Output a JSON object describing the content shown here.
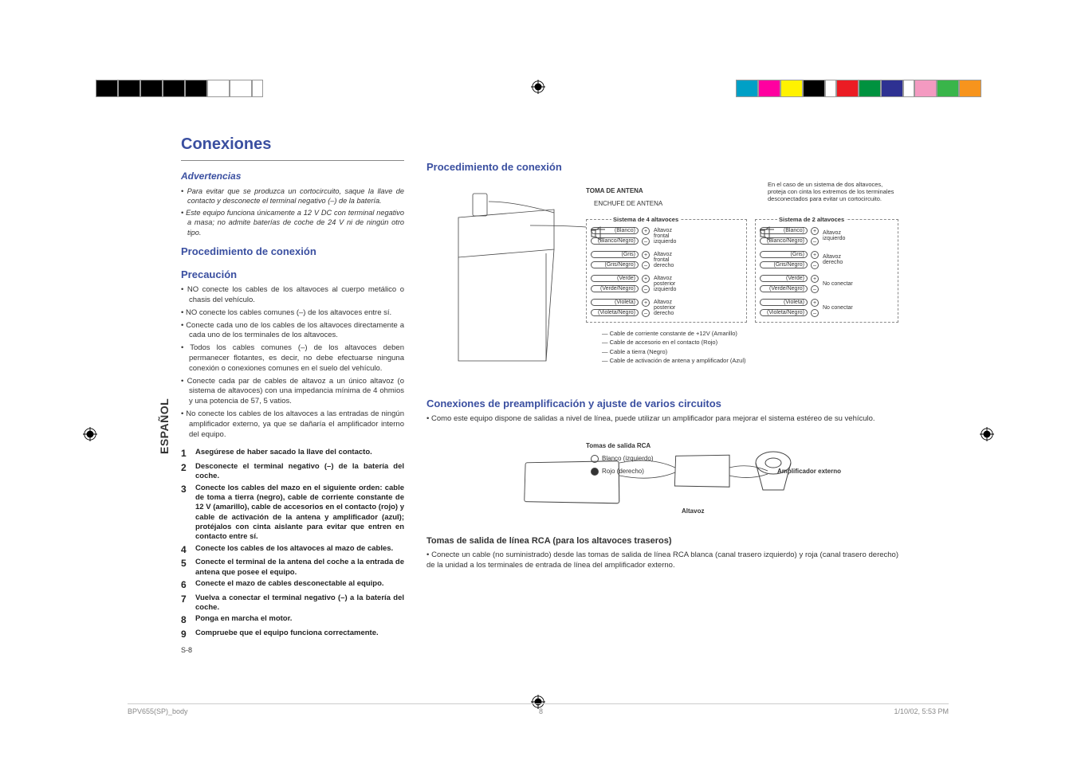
{
  "colorStrips": {
    "leftColors": [
      "#000000",
      "#000000",
      "#000000",
      "#000000",
      "#000000",
      "#ffffff",
      "#ffffff",
      "#ffffff"
    ],
    "rightColors": [
      "#00a0c6",
      "#ff00a0",
      "#fff200",
      "#000000",
      "#ffffff",
      "#eb1c24",
      "#00923f",
      "#2e3192",
      "#f7941d",
      "#39b54a",
      "#f49ac1",
      "#92278f"
    ]
  },
  "sideTab": "ESPAÑOL",
  "sectionTitle": "Conexiones",
  "warnings": {
    "head": "Advertencias",
    "items": [
      "• Para evitar que se produzca un cortocircuito, saque la llave de contacto y desconecte el terminal negativo (–) de la batería.",
      "• Este equipo funciona únicamente a 12 V DC con terminal negativo a masa; no admite baterías de coche de 24 V ni de ningún otro tipo."
    ]
  },
  "procHead": "Procedimiento de conexión",
  "precaution": {
    "head": "Precaución",
    "items": [
      "• NO conecte los cables de los altavoces al cuerpo metálico o chasis del vehículo.",
      "• NO conecte los cables comunes (–) de los altavoces entre sí.",
      "• Conecte cada uno de los cables de los altavoces directamente a cada uno de los terminales de los altavoces.",
      "• Todos los cables comunes (–) de los altavoces deben permanecer flotantes, es decir, no debe efectuarse ninguna conexión o conexiones comunes en el suelo del vehículo.",
      "• Conecte cada par de cables de altavoz a un único altavoz (o sistema de altavoces) con una impedancia mínima de 4 ohmios y una potencia de 57, 5 vatios.",
      "• No conecte los cables de los altavoces a las entradas de ningún amplificador externo, ya que se dañaría el amplificador interno del equipo."
    ]
  },
  "steps": [
    "Asegúrese de haber sacado la llave del contacto.",
    "Desconecte el terminal negativo (–) de la batería del coche.",
    "Conecte los cables del mazo en el siguiente orden: cable de toma a tierra (negro), cable de corriente constante de 12 V (amarillo), cable de accesorios en el contacto (rojo) y cable de activación de la antena y amplificador (azul); protéjalos con cinta aislante para evitar que entren en contacto entre sí.",
    "Conecte los cables de los altavoces al mazo de cables.",
    "Conecte el terminal de la antena del coche a la entrada de antena que posee el equipo.",
    "Conecte el mazo de cables desconectable al equipo.",
    "Vuelva a conectar el terminal negativo (–) a la batería del coche.",
    "Ponga en marcha el motor.",
    "Compruebe que el equipo funciona correctamente."
  ],
  "pageNum": "S-8",
  "rightCol": {
    "procHead": "Procedimiento de conexión",
    "antennaJack": "TOMA DE ANTENA",
    "antennaPlug": "ENCHUFE DE ANTENA",
    "twoSpkNote": "En el caso de un sistema de dos altavoces, proteja con cinta los extremos de los terminales desconectados para evitar un cortocircuito.",
    "sys4": "Sistema de 4 altavoces",
    "sys2": "Sistema de 2 altavoces",
    "wires4": [
      {
        "c": "(Blanco)",
        "n": "(Blanco/Negro)",
        "lbl": "Altavoz frontal izquierdo"
      },
      {
        "c": "(Gris)",
        "n": "(Gris/Negro)",
        "lbl": "Altavoz frontal derecho"
      },
      {
        "c": "(Verde)",
        "n": "(Verde/Negro)",
        "lbl": "Altavoz posterior izquierdo"
      },
      {
        "c": "(Violeta)",
        "n": "(Violeta/Negro)",
        "lbl": "Altavoz posterior derecho"
      }
    ],
    "wires2": [
      {
        "c": "(Blanco)",
        "n": "(Blanco/Negro)",
        "lbl": "Altavoz izquierdo"
      },
      {
        "c": "(Gris)",
        "n": "(Gris/Negro)",
        "lbl": "Altavoz derecho"
      },
      {
        "c": "(Verde)",
        "n": "(Verde/Negro)",
        "lbl": "No conectar"
      },
      {
        "c": "(Violeta)",
        "n": "(Violeta/Negro)",
        "lbl": "No conectar"
      }
    ],
    "cables": [
      "Cable de corriente constante de +12V (Amarillo)",
      "Cable de accesorio en el contacto (Rojo)",
      "Cable a tierra (Negro)",
      "Cable de activación de antena y amplificador (Azul)"
    ],
    "preampHead": "Conexiones de preamplificación y ajuste de varios circuitos",
    "preampText": "• Como este equipo dispone de salidas a nivel de línea, puede utilizar un amplificador para mejorar el sistema estéreo de su vehículo.",
    "rcaHead": "Tomas de salida de línea RCA (para los altavoces traseros)",
    "rcaText": "• Conecte un cable (no suministrado) desde las tomas de salida de línea RCA blanca (canal trasero izquierdo) y roja (canal trasero derecho) de la unidad a los terminales de entrada de línea del amplificador externo.",
    "ampDiagram": {
      "rcaOut": "Tomas de salida RCA",
      "white": "Blanco (izquierdo)",
      "red": "Rojo (derecho)",
      "extAmp": "Amplificador externo",
      "spk": "Altavoz"
    }
  },
  "footer": {
    "file": "BPV655(SP)_body",
    "page": "8",
    "ts": "1/10/02, 5:53 PM"
  }
}
